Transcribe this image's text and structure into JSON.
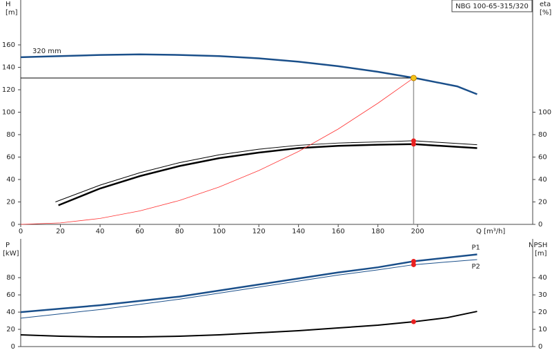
{
  "chart_data": [
    {
      "type": "line",
      "title": "NBG 100-65-315/320",
      "ylabel": "H",
      "yunit": "[m]",
      "y2label": "eta",
      "y2unit": "[%]",
      "xlabel": "Q [m³/h]",
      "xlim": [
        0,
        258
      ],
      "xticks": [
        0,
        20,
        40,
        60,
        80,
        100,
        120,
        140,
        160,
        180,
        200
      ],
      "ylim": [
        0,
        200
      ],
      "yticks": [
        0,
        20,
        40,
        60,
        80,
        100,
        120,
        140,
        160
      ],
      "y2lim": [
        0,
        200
      ],
      "y2ticks": [
        0,
        20,
        40,
        60,
        80,
        100
      ],
      "duty_point": {
        "x": 198,
        "y": 130.5,
        "color": "#f5c518"
      },
      "series": [
        {
          "name": "320 mm",
          "color": "#1a4f8a",
          "line_width": 2.5,
          "x": [
            0,
            20,
            40,
            60,
            80,
            100,
            120,
            140,
            160,
            180,
            200,
            220,
            230
          ],
          "values": [
            149,
            150,
            151,
            151.5,
            151,
            150,
            148,
            145,
            141,
            136,
            130,
            123,
            116
          ]
        },
        {
          "color": "#000000",
          "line_width": 1,
          "axis": "y2",
          "marker_color": "#e82020",
          "x": [
            17.5,
            40,
            60,
            80,
            100,
            120,
            140,
            160,
            180,
            198,
            230
          ],
          "values": [
            20,
            35,
            46,
            55,
            62,
            67,
            70.5,
            72.5,
            73.5,
            74.5,
            71
          ]
        },
        {
          "color": "#000000",
          "line_width": 2.5,
          "axis": "y2",
          "marker_color": "#e82020",
          "x": [
            19,
            40,
            60,
            80,
            100,
            120,
            140,
            160,
            180,
            198,
            230
          ],
          "values": [
            17,
            32,
            43,
            52,
            59,
            64,
            68,
            70,
            71,
            71.5,
            68
          ]
        },
        {
          "color": "#ff3030",
          "line_width": 0.8,
          "x": [
            0,
            20,
            40,
            60,
            80,
            100,
            120,
            140,
            160,
            180,
            198
          ],
          "values": [
            0,
            1.3,
            5.3,
            12,
            21.3,
            33.3,
            48,
            65,
            85,
            108,
            130.5
          ]
        }
      ]
    },
    {
      "type": "line",
      "ylabel": "P",
      "yunit": "[kW]",
      "y2label": "NPSH",
      "y2unit": "[m]",
      "xlim": [
        0,
        258
      ],
      "ylim": [
        0,
        125
      ],
      "yticks": [
        0,
        20,
        40,
        60,
        80
      ],
      "y2lim": [
        0,
        62.5
      ],
      "y2ticks": [
        0,
        10,
        20,
        30,
        40
      ],
      "series": [
        {
          "name": "P1",
          "color": "#1a4f8a",
          "line_width": 2.5,
          "marker_color": "#e82020",
          "x": [
            0,
            20,
            40,
            60,
            80,
            100,
            120,
            140,
            160,
            180,
            198,
            230
          ],
          "values": [
            40,
            44,
            48,
            53,
            58,
            65,
            72,
            79,
            86,
            92,
            99,
            107
          ]
        },
        {
          "name": "P2",
          "color": "#1a4f8a",
          "line_width": 1,
          "marker_color": "#e82020",
          "x": [
            0,
            20,
            40,
            60,
            80,
            100,
            120,
            140,
            160,
            180,
            198,
            230
          ],
          "values": [
            33,
            38,
            43,
            49,
            55,
            62,
            69,
            76,
            83,
            89,
            95,
            101
          ]
        },
        {
          "color": "#000000",
          "line_width": 2,
          "axis": "y2",
          "marker_color": "#e82020",
          "x": [
            0,
            20,
            40,
            60,
            80,
            100,
            120,
            140,
            160,
            180,
            198,
            215,
            230
          ],
          "values": [
            6.8,
            6,
            5.6,
            5.6,
            6,
            6.8,
            8,
            9.2,
            10.8,
            12.4,
            14.4,
            16.8,
            20.4
          ]
        }
      ]
    }
  ]
}
